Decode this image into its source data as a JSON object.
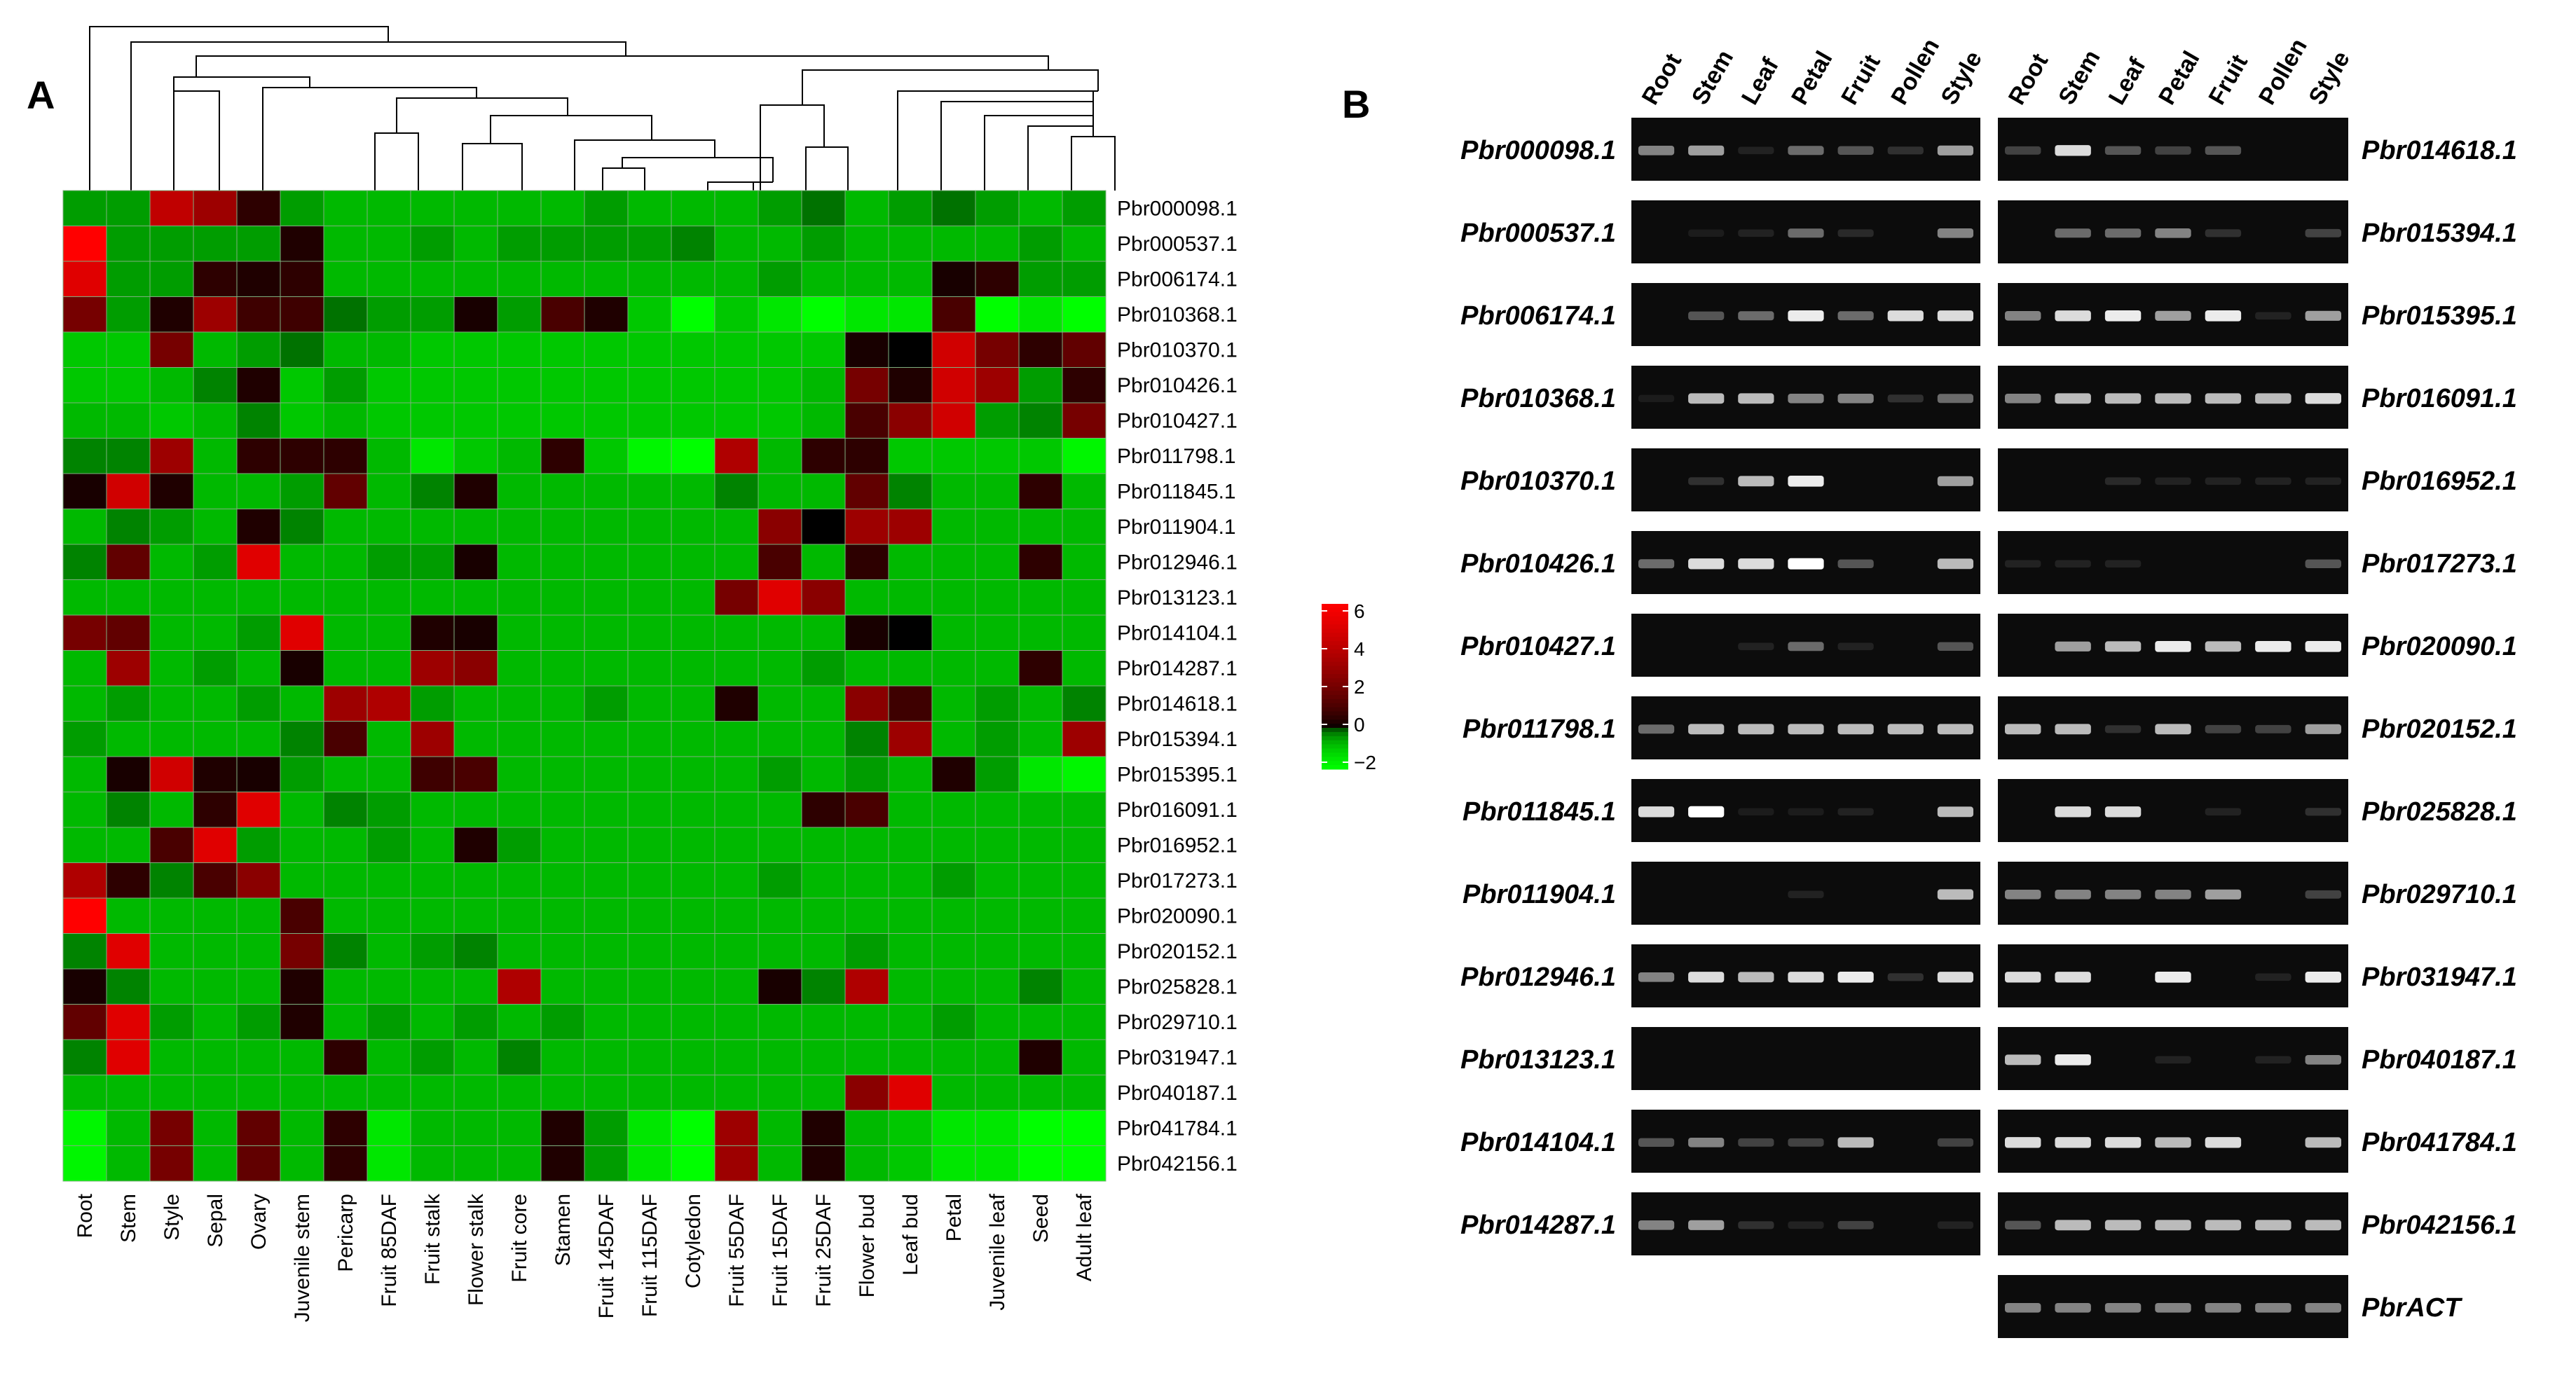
{
  "chart_data": [
    {
      "type": "heatmap",
      "panel": "A",
      "columns": [
        "Root",
        "Stem",
        "Style",
        "Sepal",
        "Ovary",
        "Juvenile stem",
        "Pericarp",
        "Fruit 85DAF",
        "Fruit stalk",
        "Flower stalk",
        "Fruit core",
        "Stamen",
        "Fruit 145DAF",
        "Fruit 115DAF",
        "Cotyledon",
        "Fruit 55DAF",
        "Fruit 15DAF",
        "Fruit 25DAF",
        "Flower bud",
        "Leaf bud",
        "Petal",
        "Juvenile leaf",
        "Seed",
        "Adult leaf"
      ],
      "rows": [
        "Pbr000098.1",
        "Pbr000537.1",
        "Pbr006174.1",
        "Pbr010368.1",
        "Pbr010370.1",
        "Pbr010426.1",
        "Pbr010427.1",
        "Pbr011798.1",
        "Pbr011845.1",
        "Pbr011904.1",
        "Pbr012946.1",
        "Pbr013123.1",
        "Pbr014104.1",
        "Pbr014287.1",
        "Pbr014618.1",
        "Pbr015394.1",
        "Pbr015395.1",
        "Pbr016091.1",
        "Pbr016952.1",
        "Pbr017273.1",
        "Pbr020090.1",
        "Pbr020152.1",
        "Pbr025828.1",
        "Pbr029710.1",
        "Pbr031947.1",
        "Pbr040187.1",
        "Pbr041784.1",
        "Pbr042156.1"
      ],
      "values": [
        [
          -0.5,
          -0.5,
          4,
          3,
          0.5,
          -0.5,
          -0.8,
          -0.8,
          -0.8,
          -0.8,
          -0.8,
          -0.8,
          -0.5,
          -0.8,
          -0.8,
          -0.8,
          -0.5,
          -0.2,
          -0.8,
          -0.5,
          -0.2,
          -0.5,
          -0.8,
          -0.5
        ],
        [
          6,
          -0.5,
          -0.5,
          -0.5,
          -0.5,
          0.3,
          -0.8,
          -0.8,
          -0.5,
          -0.8,
          -0.5,
          -0.5,
          -0.5,
          -0.5,
          -0.3,
          -0.8,
          -0.8,
          -0.5,
          -0.8,
          -0.8,
          -0.8,
          -0.8,
          -0.5,
          -0.8
        ],
        [
          5,
          -0.5,
          -0.5,
          0.5,
          0.3,
          0.5,
          -0.8,
          -0.8,
          -0.8,
          -0.8,
          -0.8,
          -0.8,
          -0.8,
          -0.8,
          -0.8,
          -0.8,
          -0.5,
          -0.8,
          -0.8,
          -0.8,
          0.2,
          0.5,
          -0.5,
          -0.5
        ],
        [
          2,
          -0.5,
          0.3,
          3,
          0.8,
          0.8,
          -0.2,
          -0.5,
          -0.5,
          0.2,
          -0.5,
          1,
          0.3,
          -1,
          -2,
          -1,
          -1.5,
          -2,
          -1.5,
          -1.5,
          1,
          -2,
          -1.5,
          -2
        ],
        [
          -1,
          -1,
          2,
          -0.8,
          -0.5,
          -0.2,
          -0.8,
          -0.8,
          -1,
          -1,
          -1,
          -1,
          -1,
          -1,
          -1,
          -1,
          -1,
          -1,
          0.2,
          0,
          4.5,
          2,
          0.5,
          1.5
        ],
        [
          -1,
          -1,
          -0.8,
          -0.3,
          0.3,
          -1,
          -0.5,
          -1,
          -1,
          -1,
          -1,
          -1,
          -1,
          -1,
          -1,
          -1,
          -1,
          -0.8,
          2,
          0.3,
          4.5,
          3,
          -0.5,
          0.5
        ],
        [
          -0.8,
          -0.8,
          -1,
          -0.8,
          -0.3,
          -1,
          -0.8,
          -1,
          -1,
          -1,
          -1,
          -1,
          -1,
          -1,
          -1,
          -1,
          -1,
          -0.8,
          1,
          2.5,
          4.5,
          -0.5,
          -0.3,
          2
        ],
        [
          -0.3,
          -0.3,
          3,
          -0.8,
          0.5,
          0.5,
          0.5,
          -0.8,
          -1.5,
          -1,
          -0.8,
          0.5,
          -1,
          -1.8,
          -2,
          3.5,
          -0.8,
          0.5,
          0.5,
          -1,
          -1,
          -1,
          -1,
          -1.8
        ],
        [
          0.2,
          4.5,
          0.3,
          -0.8,
          -0.8,
          -0.5,
          1.5,
          -0.8,
          -0.3,
          0.3,
          -0.8,
          -0.8,
          -0.8,
          -0.8,
          -0.8,
          -0.3,
          -0.8,
          -0.8,
          1.5,
          -0.3,
          -0.8,
          -0.8,
          0.5,
          -0.8
        ],
        [
          -0.8,
          -0.3,
          -0.5,
          -0.8,
          0.3,
          -0.3,
          -0.8,
          -0.8,
          -0.8,
          -0.8,
          -0.8,
          -0.8,
          -0.8,
          -0.8,
          -0.8,
          -0.8,
          2.5,
          0,
          3,
          3,
          -0.8,
          -0.8,
          -0.8,
          -0.8
        ],
        [
          -0.3,
          1.5,
          -0.8,
          -0.5,
          5,
          -0.8,
          -0.8,
          -0.5,
          -0.5,
          0.2,
          -0.8,
          -0.8,
          -0.8,
          -0.8,
          -0.8,
          -0.8,
          1,
          -0.8,
          0.5,
          -0.8,
          -0.8,
          -0.8,
          0.5,
          -0.8
        ],
        [
          -0.8,
          -0.8,
          -0.8,
          -0.8,
          -0.8,
          -0.8,
          -0.8,
          -0.8,
          -0.8,
          -0.8,
          -0.8,
          -0.8,
          -0.8,
          -0.8,
          -0.8,
          2,
          5,
          2.5,
          -0.8,
          -0.8,
          -0.8,
          -0.8,
          -0.8,
          -0.8
        ],
        [
          2,
          1.5,
          -0.8,
          -0.8,
          -0.5,
          5,
          -0.8,
          -0.8,
          0.3,
          0.2,
          -0.8,
          -0.8,
          -0.8,
          -0.8,
          -0.8,
          -0.8,
          -0.8,
          -0.8,
          0.2,
          0,
          -0.8,
          -0.8,
          -0.8,
          -0.8
        ],
        [
          -0.8,
          3,
          -0.8,
          -0.5,
          -0.8,
          0.2,
          -0.8,
          -0.8,
          3,
          2.5,
          -0.8,
          -0.8,
          -0.8,
          -0.8,
          -0.8,
          -0.8,
          -0.8,
          -0.5,
          -0.8,
          -0.8,
          -0.8,
          -0.8,
          0.5,
          -0.8
        ],
        [
          -0.8,
          -0.5,
          -0.8,
          -0.8,
          -0.5,
          -0.8,
          3,
          3.5,
          -0.5,
          -0.8,
          -0.8,
          -0.8,
          -0.5,
          -0.8,
          -0.8,
          0.3,
          -0.8,
          -0.8,
          2.5,
          0.8,
          -0.8,
          -0.5,
          -0.8,
          -0.3
        ],
        [
          -0.5,
          -0.8,
          -0.8,
          -0.8,
          -0.8,
          -0.3,
          1,
          -0.8,
          3,
          -0.8,
          -0.8,
          -0.8,
          -0.8,
          -0.8,
          -0.8,
          -0.8,
          -0.8,
          -0.8,
          -0.3,
          3,
          -0.8,
          -0.5,
          -0.8,
          3
        ],
        [
          -0.8,
          0.2,
          4.5,
          0.3,
          0.2,
          -0.5,
          -0.8,
          -0.8,
          0.8,
          1,
          -0.8,
          -0.8,
          -0.8,
          -0.8,
          -0.8,
          -0.8,
          -0.5,
          -0.8,
          -0.5,
          -0.8,
          0.3,
          -0.5,
          -1.5,
          -1.8
        ],
        [
          -0.8,
          -0.3,
          -0.8,
          0.5,
          5,
          -0.8,
          -0.3,
          -0.5,
          -0.8,
          -0.8,
          -0.8,
          -0.8,
          -0.8,
          -0.8,
          -0.8,
          -0.8,
          -0.8,
          0.5,
          1,
          -0.8,
          -0.8,
          -0.8,
          -0.8,
          -0.8
        ],
        [
          -0.8,
          -0.8,
          1,
          5,
          -0.5,
          -0.8,
          -0.8,
          -0.5,
          -0.8,
          0.3,
          -0.5,
          -0.8,
          -0.8,
          -0.8,
          -0.8,
          -0.8,
          -0.8,
          -0.8,
          -0.8,
          -0.8,
          -0.8,
          -0.8,
          -0.8,
          -0.8
        ],
        [
          3.5,
          0.5,
          -0.3,
          1,
          2.5,
          -0.8,
          -0.8,
          -0.8,
          -0.8,
          -0.8,
          -0.8,
          -0.8,
          -0.8,
          -0.8,
          -0.8,
          -0.8,
          -0.5,
          -0.8,
          -0.8,
          -0.8,
          -0.5,
          -0.8,
          -0.8,
          -0.8
        ],
        [
          6,
          -0.8,
          -0.8,
          -0.8,
          -0.8,
          1,
          -0.8,
          -0.8,
          -0.8,
          -0.8,
          -0.8,
          -0.8,
          -0.8,
          -0.8,
          -0.8,
          -0.8,
          -0.8,
          -0.8,
          -0.8,
          -0.8,
          -0.8,
          -0.8,
          -0.8,
          -0.8
        ],
        [
          -0.3,
          5,
          -0.8,
          -0.8,
          -0.8,
          2,
          -0.3,
          -0.8,
          -0.5,
          -0.3,
          -0.8,
          -0.8,
          -0.8,
          -0.8,
          -0.8,
          -0.8,
          -0.8,
          -0.8,
          -0.5,
          -0.8,
          -0.8,
          -0.8,
          -0.8,
          -0.8
        ],
        [
          0.2,
          -0.3,
          -0.8,
          -0.8,
          -0.8,
          0.3,
          -0.8,
          -0.8,
          -0.8,
          -0.8,
          3.5,
          -0.8,
          -0.8,
          -0.8,
          -0.8,
          -0.8,
          0.2,
          -0.3,
          3.5,
          -0.8,
          -0.8,
          -0.8,
          -0.3,
          -0.8
        ],
        [
          1.5,
          5,
          -0.5,
          -0.8,
          -0.5,
          0.3,
          -0.8,
          -0.5,
          -0.8,
          -0.5,
          -0.8,
          -0.5,
          -0.8,
          -0.8,
          -0.8,
          -0.8,
          -0.8,
          -0.8,
          -0.8,
          -0.8,
          -0.5,
          -0.8,
          -0.8,
          -0.8
        ],
        [
          -0.3,
          5,
          -0.8,
          -0.8,
          -0.8,
          -0.8,
          0.5,
          -0.8,
          -0.5,
          -0.8,
          -0.3,
          -0.8,
          -0.8,
          -0.8,
          -0.8,
          -0.8,
          -0.8,
          -0.8,
          -0.8,
          -0.8,
          -0.8,
          -0.8,
          0.3,
          -0.8
        ],
        [
          -0.8,
          -0.8,
          -0.8,
          -0.8,
          -0.8,
          -0.8,
          -0.8,
          -0.8,
          -0.8,
          -0.8,
          -0.8,
          -0.8,
          -0.8,
          -0.8,
          -0.8,
          -0.8,
          -0.8,
          -0.8,
          2.5,
          5,
          -0.8,
          -0.8,
          -0.8,
          -0.8
        ],
        [
          -1.8,
          -0.8,
          2,
          -0.8,
          1.5,
          -0.8,
          0.5,
          -1.5,
          -0.8,
          -0.8,
          -0.8,
          0.3,
          -0.5,
          -1.5,
          -2,
          3,
          -0.8,
          0.3,
          -0.8,
          -1,
          -1.5,
          -1.5,
          -2,
          -2
        ],
        [
          -1.8,
          -0.8,
          2,
          -0.8,
          1.5,
          -0.8,
          0.5,
          -1.5,
          -0.8,
          -0.8,
          -0.8,
          0.3,
          -0.5,
          -1.5,
          -2,
          3,
          -0.8,
          0.3,
          -0.8,
          -1,
          -1.5,
          -1.5,
          -2,
          -2
        ]
      ],
      "color_scale": {
        "min": -2,
        "max": 6,
        "low_color": "#00ff00",
        "mid_color": "#000000",
        "high_color": "#ff0000",
        "ticks": [
          "6",
          "4",
          "2",
          "0",
          "−2"
        ]
      }
    },
    {
      "type": "gel",
      "panel": "B",
      "lanes": [
        "Root",
        "Stem",
        "Leaf",
        "Petal",
        "Fruit",
        "Pollen",
        "Style"
      ],
      "left_genes": [
        "Pbr000098.1",
        "Pbr000537.1",
        "Pbr006174.1",
        "Pbr010368.1",
        "Pbr010370.1",
        "Pbr010426.1",
        "Pbr010427.1",
        "Pbr011798.1",
        "Pbr011845.1",
        "Pbr011904.1",
        "Pbr012946.1",
        "Pbr013123.1",
        "Pbr014104.1",
        "Pbr014287.1"
      ],
      "right_genes": [
        "Pbr014618.1",
        "Pbr015394.1",
        "Pbr015395.1",
        "Pbr016091.1",
        "Pbr016952.1",
        "Pbr017273.1",
        "Pbr020090.1",
        "Pbr020152.1",
        "Pbr025828.1",
        "Pbr029710.1",
        "Pbr031947.1",
        "Pbr040187.1",
        "Pbr041784.1",
        "Pbr042156.1",
        "PbrACT"
      ],
      "left_intensity": [
        [
          0.6,
          0.7,
          0.1,
          0.5,
          0.4,
          0.2,
          0.7
        ],
        [
          0,
          0.05,
          0.1,
          0.5,
          0.15,
          0,
          0.6
        ],
        [
          0,
          0.4,
          0.5,
          0.95,
          0.5,
          0.9,
          0.9
        ],
        [
          0.05,
          0.8,
          0.8,
          0.6,
          0.6,
          0.2,
          0.5
        ],
        [
          0,
          0.2,
          0.8,
          0.95,
          0,
          0,
          0.7
        ],
        [
          0.5,
          0.9,
          0.9,
          1,
          0.4,
          0,
          0.8
        ],
        [
          0,
          0,
          0.1,
          0.5,
          0.1,
          0,
          0.4
        ],
        [
          0.5,
          0.8,
          0.8,
          0.8,
          0.8,
          0.8,
          0.8
        ],
        [
          0.9,
          1,
          0.05,
          0.05,
          0.1,
          0,
          0.8
        ],
        [
          0,
          0,
          0,
          0.1,
          0,
          0,
          0.8
        ],
        [
          0.6,
          0.9,
          0.8,
          0.9,
          0.95,
          0.2,
          0.9
        ],
        [
          0,
          0,
          0,
          0,
          0,
          0,
          0
        ],
        [
          0.4,
          0.6,
          0.3,
          0.3,
          0.8,
          0,
          0.3
        ],
        [
          0.6,
          0.7,
          0.2,
          0.1,
          0.3,
          0,
          0.1
        ]
      ],
      "right_intensity": [
        [
          0.3,
          0.9,
          0.4,
          0.3,
          0.4,
          0,
          0
        ],
        [
          0,
          0.5,
          0.5,
          0.6,
          0.2,
          0,
          0.3
        ],
        [
          0.6,
          0.9,
          0.95,
          0.7,
          0.95,
          0.1,
          0.7
        ],
        [
          0.6,
          0.8,
          0.8,
          0.8,
          0.8,
          0.8,
          0.9
        ],
        [
          0,
          0,
          0.15,
          0.1,
          0.1,
          0.1,
          0.1
        ],
        [
          0.1,
          0.1,
          0.1,
          0,
          0,
          0,
          0.4
        ],
        [
          0,
          0.7,
          0.8,
          0.95,
          0.8,
          0.95,
          0.95
        ],
        [
          0.8,
          0.8,
          0.2,
          0.8,
          0.3,
          0.3,
          0.7
        ],
        [
          0,
          0.9,
          0.9,
          0,
          0.1,
          0,
          0.2
        ],
        [
          0.6,
          0.6,
          0.6,
          0.6,
          0.7,
          0,
          0.3
        ],
        [
          0.9,
          0.9,
          0,
          0.95,
          0,
          0.1,
          0.95
        ],
        [
          0.8,
          0.95,
          0,
          0.1,
          0,
          0.1,
          0.6
        ],
        [
          0.9,
          0.9,
          0.9,
          0.8,
          0.9,
          0,
          0.8
        ],
        [
          0.4,
          0.8,
          0.8,
          0.8,
          0.8,
          0.8,
          0.8
        ],
        [
          0.6,
          0.6,
          0.6,
          0.6,
          0.6,
          0.6,
          0.6
        ]
      ]
    }
  ],
  "panels": {
    "a": "A",
    "b": "B"
  }
}
